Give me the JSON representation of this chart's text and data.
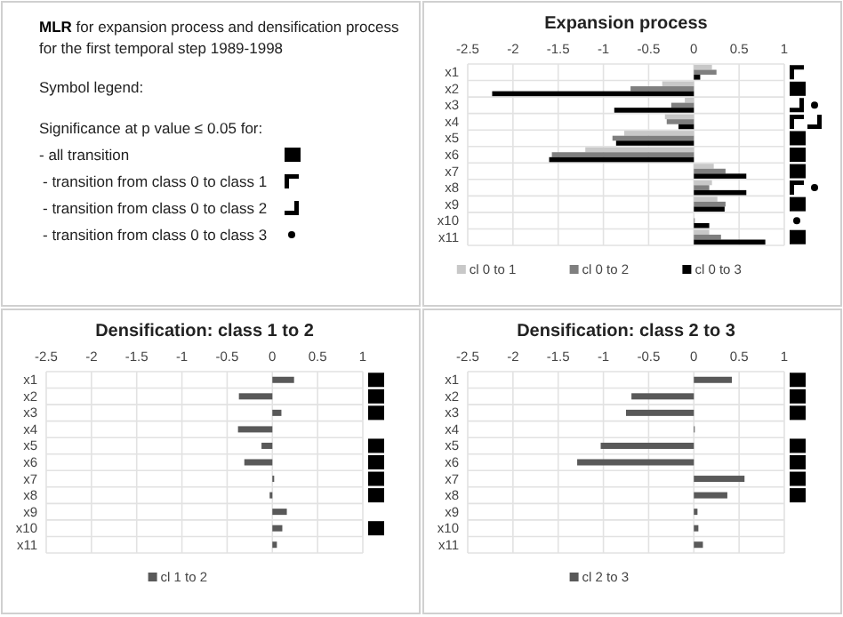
{
  "chart_data": [
    {
      "type": "other",
      "title": "MLR for expansion process and densification process for the first temporal step 1989-1998",
      "annotations": [
        "Symbol legend:",
        "Significance at p value ≤ 0.05 for:",
        "- all transition",
        "- transition from class 0 to class 1",
        "- transition from class 0 to class 2",
        "- transition from class 0 to class 3"
      ]
    },
    {
      "type": "bar",
      "orientation": "horizontal",
      "title": "Expansion process",
      "categories": [
        "x1",
        "x2",
        "x3",
        "x4",
        "x5",
        "x6",
        "x7",
        "x8",
        "x9",
        "x10",
        "x11"
      ],
      "xlim": [
        -2.5,
        1
      ],
      "xticks": [
        -2.5,
        -2,
        -1.5,
        -1,
        -0.5,
        0,
        0.5,
        1
      ],
      "grid": true,
      "legend": "bottom",
      "series": [
        {
          "name": "cl 0 to 1",
          "color": "#c8c8c8",
          "values": [
            0.2,
            -0.35,
            -0.1,
            -0.32,
            -0.77,
            -1.2,
            0.22,
            0.2,
            0.26,
            null,
            0.17
          ]
        },
        {
          "name": "cl 0 to 2",
          "color": "#7f7f7f",
          "values": [
            0.25,
            -0.7,
            -0.25,
            -0.3,
            -0.9,
            -1.57,
            0.35,
            0.17,
            0.35,
            0.01,
            0.3
          ]
        },
        {
          "name": "cl 0 to 3",
          "color": "#000000",
          "values": [
            0.07,
            -2.23,
            -0.88,
            -0.17,
            -0.86,
            -1.6,
            0.58,
            0.58,
            0.34,
            0.17,
            0.79
          ]
        }
      ]
    },
    {
      "type": "bar",
      "orientation": "horizontal",
      "title": "Densification: class 1 to 2",
      "categories": [
        "x1",
        "x2",
        "x3",
        "x4",
        "x5",
        "x6",
        "x7",
        "x8",
        "x9",
        "x10",
        "x11"
      ],
      "xlim": [
        -2.5,
        1
      ],
      "xticks": [
        -2.5,
        -2,
        -1.5,
        -1,
        -0.5,
        0,
        0.5,
        1
      ],
      "grid": true,
      "legend": "bottom",
      "series": [
        {
          "name": "cl 1 to 2",
          "color": "#595959",
          "values": [
            0.24,
            -0.37,
            0.1,
            -0.38,
            -0.12,
            -0.31,
            0.02,
            -0.03,
            0.16,
            0.11,
            0.05
          ]
        }
      ]
    },
    {
      "type": "bar",
      "orientation": "horizontal",
      "title": "Densification: class 2 to 3",
      "categories": [
        "x1",
        "x2",
        "x3",
        "x4",
        "x5",
        "x6",
        "x7",
        "x8",
        "x9",
        "x10",
        "x11"
      ],
      "xlim": [
        -2.5,
        1
      ],
      "xticks": [
        -2.5,
        -2,
        -1.5,
        -1,
        -0.5,
        0,
        0.5,
        1
      ],
      "grid": true,
      "legend": "bottom",
      "series": [
        {
          "name": "cl 2 to 3",
          "color": "#595959",
          "values": [
            0.42,
            -0.69,
            -0.75,
            0,
            -1.03,
            -1.29,
            0.56,
            0.37,
            0.04,
            0.05,
            0.1
          ]
        }
      ]
    }
  ]
}
